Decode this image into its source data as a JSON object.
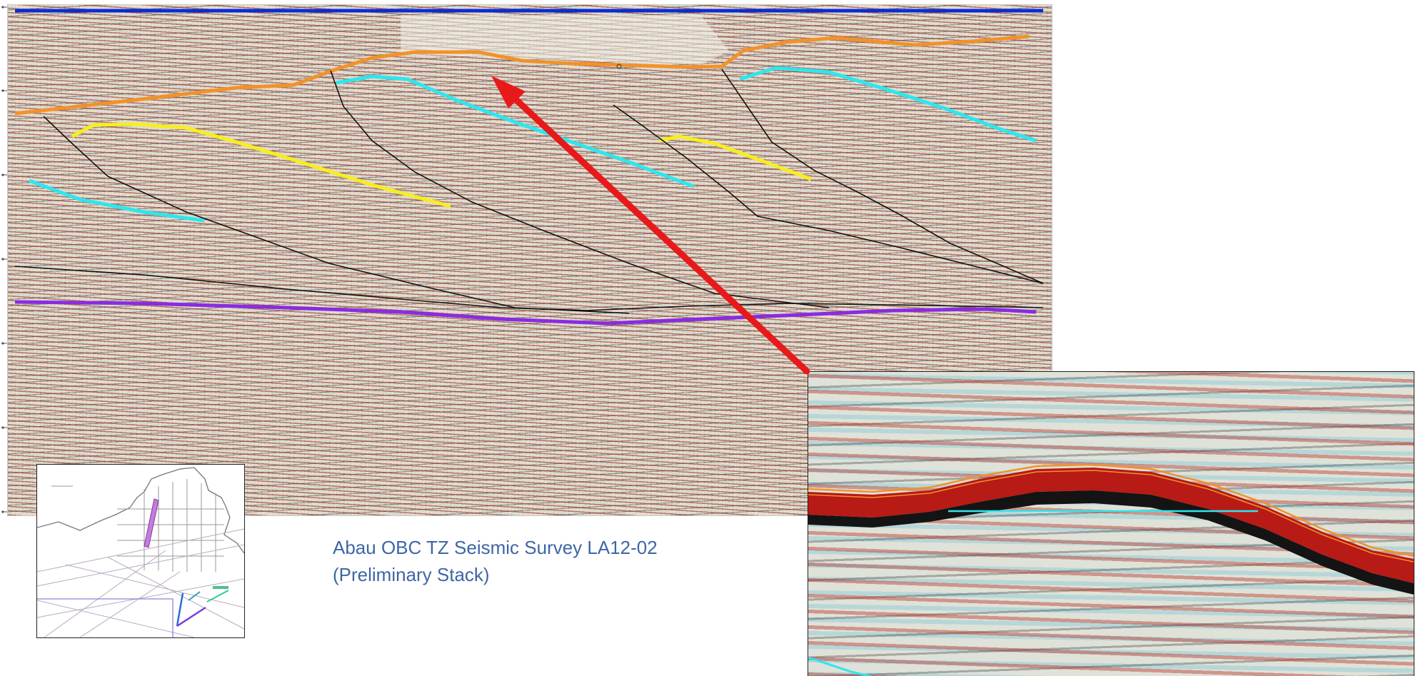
{
  "caption": {
    "line1": "Abau OBC TZ Seismic Survey LA12-02",
    "line2": "(Preliminary Stack)"
  },
  "colors": {
    "seafloor": "#0a2bd6",
    "horizon_orange": "#f2922a",
    "horizon_cyan": "#2ee6ee",
    "horizon_yellow": "#f7ee1f",
    "horizon_purple": "#8a2be2",
    "faults": "#111111",
    "arrow": "#e8191a",
    "caption": "#3e66a6"
  },
  "icons": {
    "arrow": "red-pointer-arrow"
  }
}
